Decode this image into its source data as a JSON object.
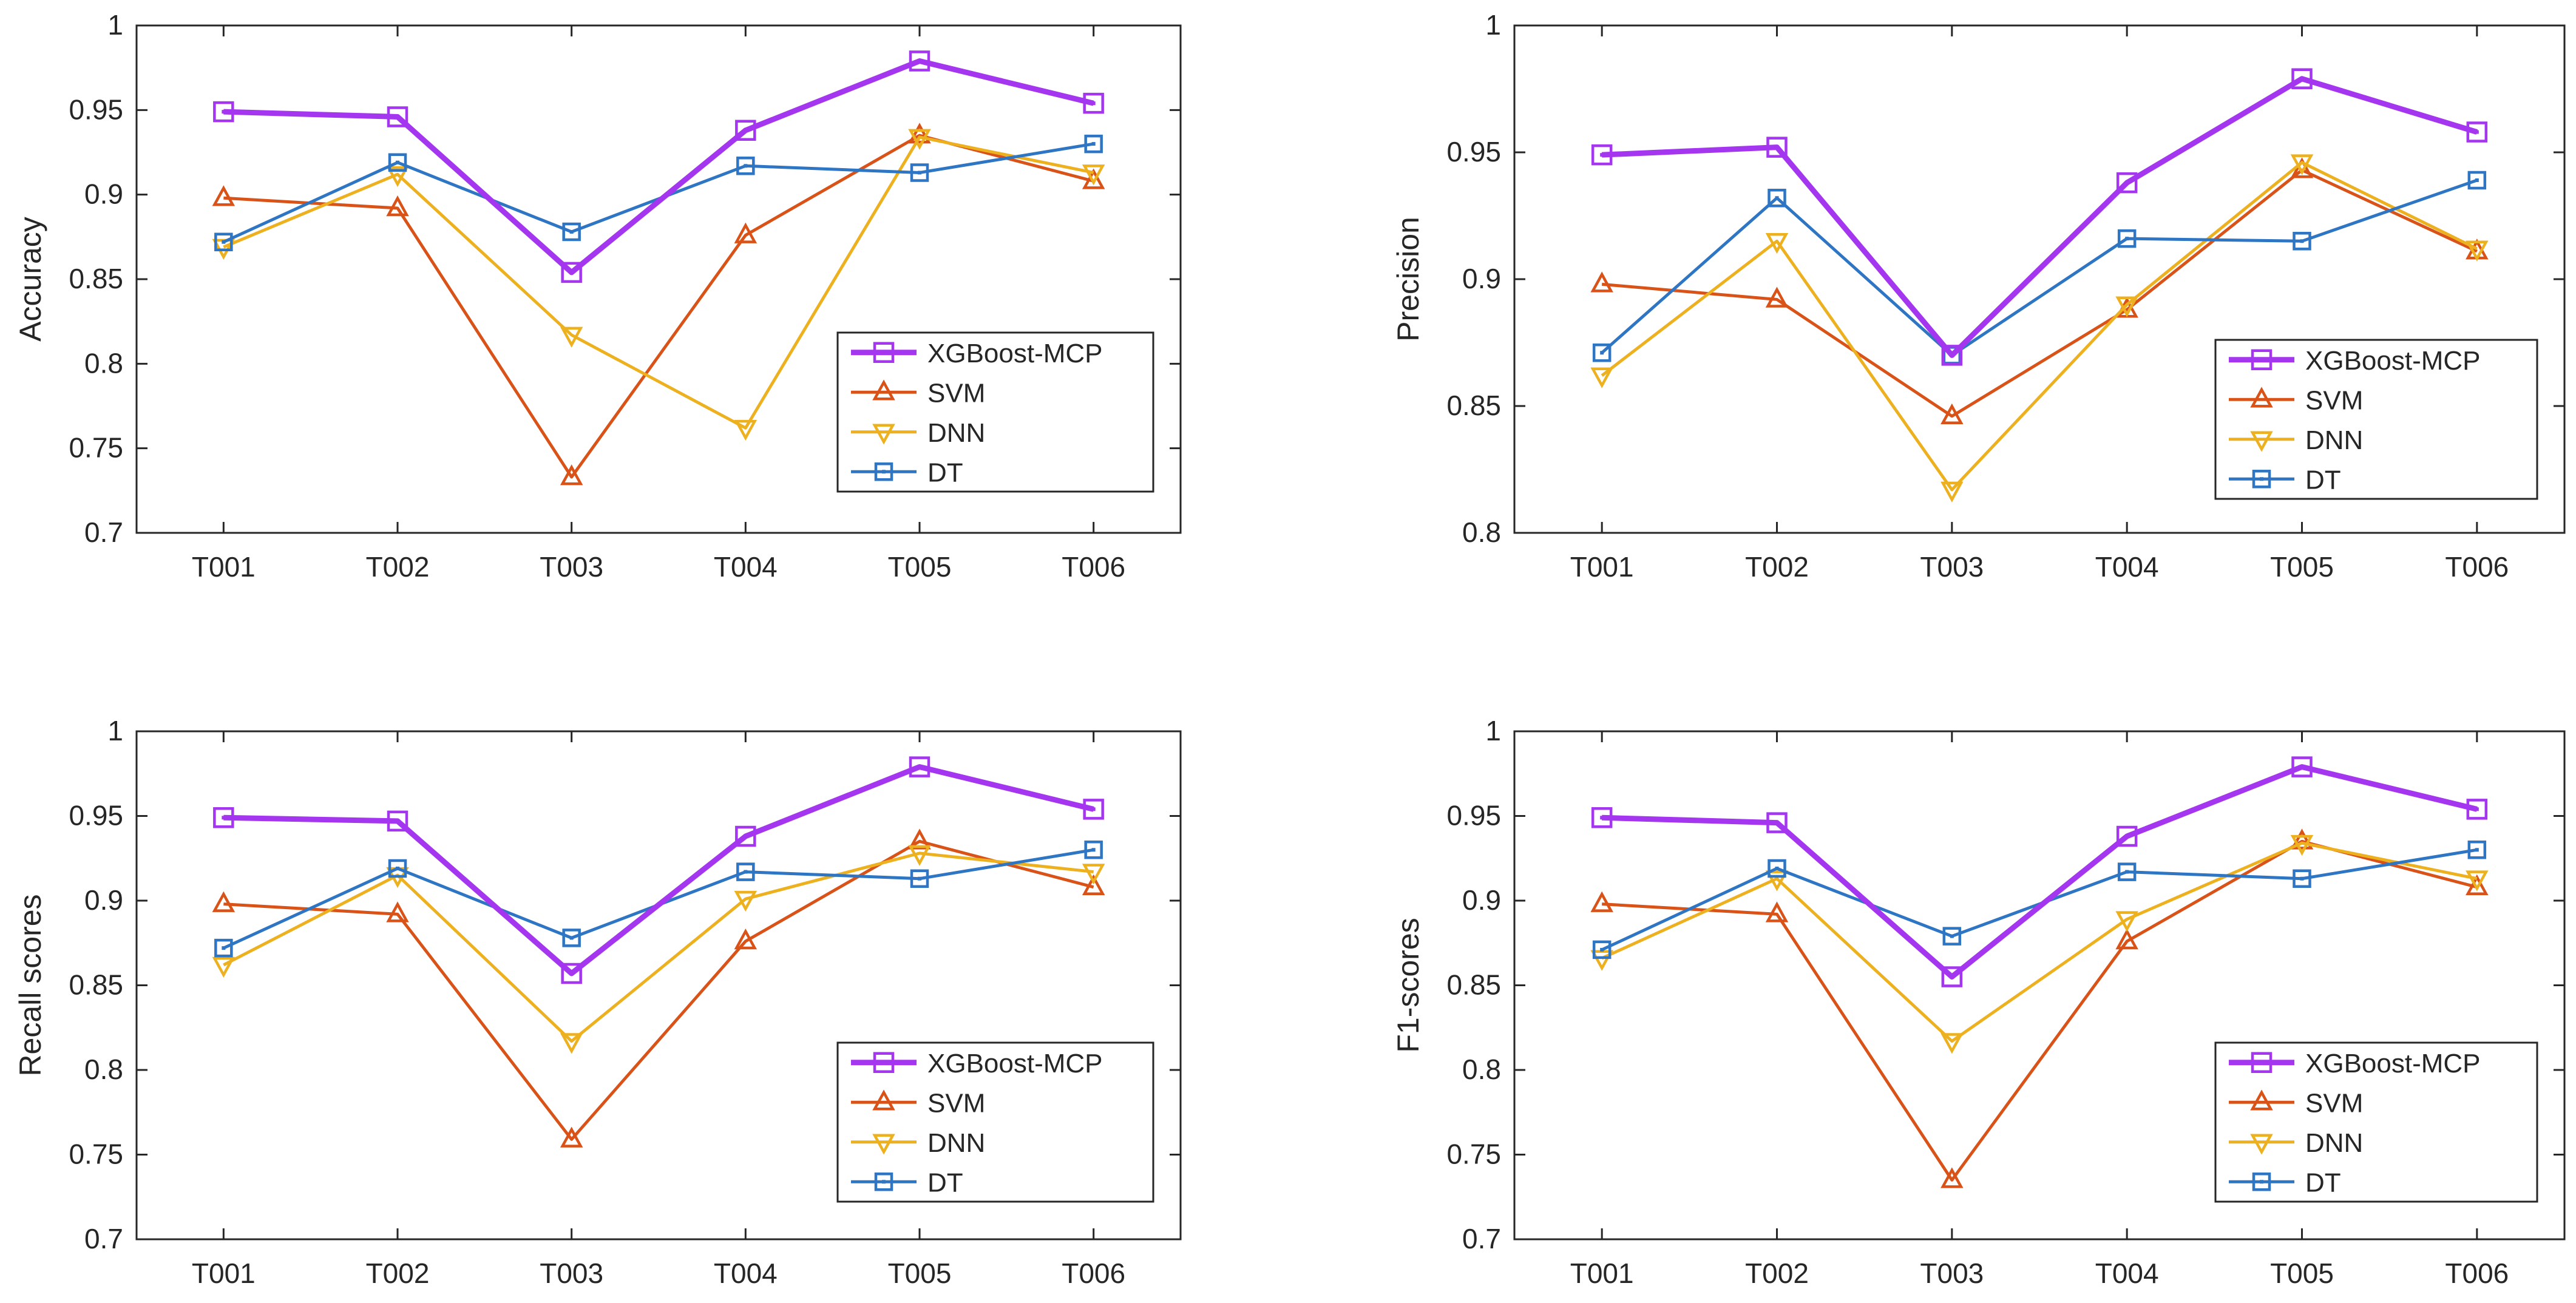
{
  "figure": {
    "colors": {
      "XGBoost-MCP": "#A436F0",
      "SVM": "#D95319",
      "DNN": "#EDB120",
      "DT": "#2E75C4",
      "axis": "#262626"
    }
  },
  "chart_data": [
    {
      "type": "line",
      "title": "",
      "xlabel": "",
      "ylabel": "Accuracy",
      "categories": [
        "T001",
        "T002",
        "T003",
        "T004",
        "T005",
        "T006"
      ],
      "ylim": [
        0.7,
        1
      ],
      "yticks": [
        0.7,
        0.75,
        0.8,
        0.85,
        0.9,
        0.95,
        1
      ],
      "ytick_labels": [
        "0.7",
        "0.75",
        "0.8",
        "0.85",
        "0.9",
        "0.95",
        "1"
      ],
      "legend_position": "lower-right",
      "series": [
        {
          "name": "XGBoost-MCP",
          "marker": "square",
          "values": [
            0.949,
            0.946,
            0.854,
            0.938,
            0.979,
            0.954
          ]
        },
        {
          "name": "SVM",
          "marker": "triangle-up",
          "values": [
            0.898,
            0.892,
            0.733,
            0.876,
            0.935,
            0.908
          ]
        },
        {
          "name": "DNN",
          "marker": "triangle-down",
          "values": [
            0.869,
            0.912,
            0.817,
            0.762,
            0.934,
            0.913
          ]
        },
        {
          "name": "DT",
          "marker": "square",
          "values": [
            0.872,
            0.919,
            0.878,
            0.917,
            0.913,
            0.93
          ]
        }
      ]
    },
    {
      "type": "line",
      "title": "",
      "xlabel": "",
      "ylabel": "Precision",
      "categories": [
        "T001",
        "T002",
        "T003",
        "T004",
        "T005",
        "T006"
      ],
      "ylim": [
        0.8,
        1
      ],
      "yticks": [
        0.8,
        0.85,
        0.9,
        0.95,
        1
      ],
      "ytick_labels": [
        "0.8",
        "0.85",
        "0.9",
        "0.95",
        "1"
      ],
      "legend_position": "lower-right",
      "series": [
        {
          "name": "XGBoost-MCP",
          "marker": "square",
          "values": [
            0.949,
            0.952,
            0.87,
            0.938,
            0.979,
            0.958
          ]
        },
        {
          "name": "SVM",
          "marker": "triangle-up",
          "values": [
            0.898,
            0.892,
            0.846,
            0.888,
            0.943,
            0.911
          ]
        },
        {
          "name": "DNN",
          "marker": "triangle-down",
          "values": [
            0.862,
            0.915,
            0.817,
            0.89,
            0.946,
            0.912
          ]
        },
        {
          "name": "DT",
          "marker": "square",
          "values": [
            0.871,
            0.932,
            0.87,
            0.916,
            0.915,
            0.939
          ]
        }
      ]
    },
    {
      "type": "line",
      "title": "",
      "xlabel": "",
      "ylabel": "Recall scores",
      "categories": [
        "T001",
        "T002",
        "T003",
        "T004",
        "T005",
        "T006"
      ],
      "ylim": [
        0.7,
        1
      ],
      "yticks": [
        0.7,
        0.75,
        0.8,
        0.85,
        0.9,
        0.95,
        1
      ],
      "ytick_labels": [
        "0.7",
        "0.75",
        "0.8",
        "0.85",
        "0.9",
        "0.95",
        "1"
      ],
      "legend_position": "lower-right",
      "series": [
        {
          "name": "XGBoost-MCP",
          "marker": "square",
          "values": [
            0.949,
            0.947,
            0.857,
            0.938,
            0.979,
            0.954
          ]
        },
        {
          "name": "SVM",
          "marker": "triangle-up",
          "values": [
            0.898,
            0.892,
            0.759,
            0.876,
            0.935,
            0.908
          ]
        },
        {
          "name": "DNN",
          "marker": "triangle-down",
          "values": [
            0.862,
            0.915,
            0.817,
            0.901,
            0.928,
            0.917
          ]
        },
        {
          "name": "DT",
          "marker": "square",
          "values": [
            0.872,
            0.919,
            0.878,
            0.917,
            0.913,
            0.93
          ]
        }
      ]
    },
    {
      "type": "line",
      "title": "",
      "xlabel": "",
      "ylabel": "F1-scores",
      "categories": [
        "T001",
        "T002",
        "T003",
        "T004",
        "T005",
        "T006"
      ],
      "ylim": [
        0.7,
        1
      ],
      "yticks": [
        0.7,
        0.75,
        0.8,
        0.85,
        0.9,
        0.95,
        1
      ],
      "ytick_labels": [
        "0.7",
        "0.75",
        "0.8",
        "0.85",
        "0.9",
        "0.95",
        "1"
      ],
      "legend_position": "lower-right",
      "series": [
        {
          "name": "XGBoost-MCP",
          "marker": "square",
          "values": [
            0.949,
            0.946,
            0.855,
            0.938,
            0.979,
            0.954
          ]
        },
        {
          "name": "SVM",
          "marker": "triangle-up",
          "values": [
            0.898,
            0.892,
            0.735,
            0.876,
            0.935,
            0.908
          ]
        },
        {
          "name": "DNN",
          "marker": "triangle-down",
          "values": [
            0.866,
            0.913,
            0.817,
            0.889,
            0.934,
            0.913
          ]
        },
        {
          "name": "DT",
          "marker": "square",
          "values": [
            0.871,
            0.919,
            0.879,
            0.917,
            0.913,
            0.93
          ]
        }
      ]
    }
  ]
}
